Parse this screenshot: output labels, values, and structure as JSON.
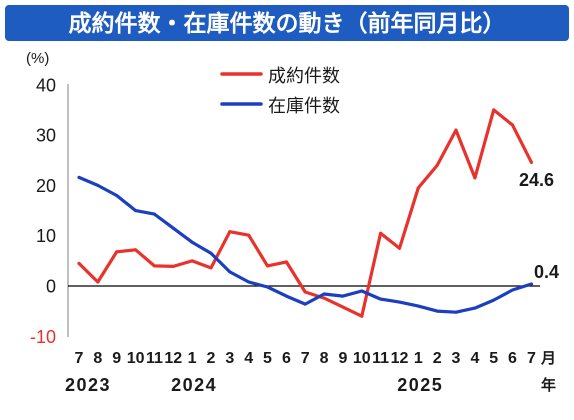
{
  "colors": {
    "title_bg": "#1e5cc2",
    "title_text": "#ffffff",
    "negative_tick": "#e8322b",
    "zero_line": "#000000",
    "axis_line": "#808080"
  },
  "chart_data": {
    "type": "line",
    "title": "成約件数・在庫件数の動き（前年同月比）",
    "ylabel": "(%)",
    "ylim": [
      -10,
      40
    ],
    "yticks": [
      40,
      30,
      20,
      10,
      0,
      -10
    ],
    "x": [
      "7",
      "8",
      "9",
      "10",
      "11",
      "12",
      "1",
      "2",
      "3",
      "4",
      "5",
      "6",
      "7",
      "8",
      "9",
      "10",
      "11",
      "12",
      "1",
      "2",
      "3",
      "4",
      "5",
      "6",
      "7"
    ],
    "x_unit": "月",
    "year_unit": "年",
    "years": [
      {
        "label": "2023",
        "start_index": 0
      },
      {
        "label": "2024",
        "start_index": 6
      },
      {
        "label": "2025",
        "start_index": 18
      }
    ],
    "legend": "top-center",
    "grid": false,
    "series": [
      {
        "name": "成約件数",
        "color": "#e8322b",
        "values": [
          4.5,
          0.8,
          6.8,
          7.2,
          4.0,
          3.9,
          5.0,
          3.6,
          10.8,
          10.1,
          4.0,
          4.8,
          -1.2,
          -2.4,
          -4.2,
          -6.0,
          10.5,
          7.5,
          19.5,
          24.0,
          31.0,
          21.5,
          35.0,
          32.0,
          24.6
        ],
        "end_label": "24.6"
      },
      {
        "name": "在庫件数",
        "color": "#1c3ec0",
        "values": [
          21.6,
          20.0,
          18.0,
          15.0,
          14.3,
          11.5,
          8.7,
          6.5,
          2.8,
          0.8,
          -0.2,
          -2.0,
          -3.6,
          -1.6,
          -2.0,
          -1.0,
          -2.6,
          -3.2,
          -4.0,
          -5.0,
          -5.2,
          -4.4,
          -2.8,
          -0.8,
          0.4
        ],
        "end_label": "0.4"
      }
    ]
  }
}
